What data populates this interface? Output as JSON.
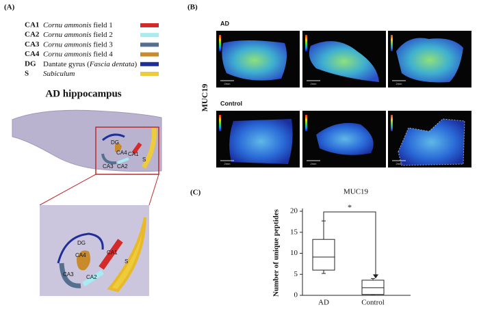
{
  "panel_a": {
    "label": "(A)",
    "legend": [
      {
        "abbr": "CA1",
        "italic": "Cornu ammonis",
        "after": " field  1",
        "color": "#d42a2a"
      },
      {
        "abbr": "CA2",
        "italic": "Cornu ammonis",
        "after": " field  2",
        "color": "#a6ecf2"
      },
      {
        "abbr": "CA3",
        "italic": "Cornu ammonis",
        "after": " field  3",
        "color": "#55708f"
      },
      {
        "abbr": "CA4",
        "italic": "Cornu ammonis",
        "after": " field  4",
        "color": "#c98a2c"
      },
      {
        "abbr": "DG",
        "before": "Dantate gyrus (",
        "italic": "Fascia dentata",
        "after": ")",
        "color": "#1f2f9a"
      },
      {
        "abbr": "S",
        "italic": "Subiculum",
        "color": "#eecb3a"
      }
    ],
    "title": "AD hippocampus",
    "regions": {
      "dg": "DG",
      "ca4": "CA4",
      "ca1": "CA1",
      "ca3": "CA3",
      "ca2": "CA2",
      "s": "S"
    }
  },
  "panel_b": {
    "label": "(B)",
    "protein": "MUC19",
    "rows": [
      "AD",
      "Control"
    ],
    "scale_bar": "2mm"
  },
  "chart_data": {
    "type": "box",
    "panel_label": "(C)",
    "title": "MUC19",
    "y_label": "Number of unique peptides",
    "categories": [
      "AD",
      "Control"
    ],
    "boxes": [
      {
        "whislo": 5.2,
        "q1": 6,
        "med": 9.1,
        "q3": 13.3,
        "whishi": 17.7
      },
      {
        "whislo": 0.2,
        "q1": 0.2,
        "med": 1.8,
        "q3": 3.6,
        "whishi": 4
      }
    ],
    "ylim": [
      0,
      20
    ],
    "yticks": [
      0,
      5,
      10,
      15,
      20
    ],
    "annotation": "*"
  }
}
